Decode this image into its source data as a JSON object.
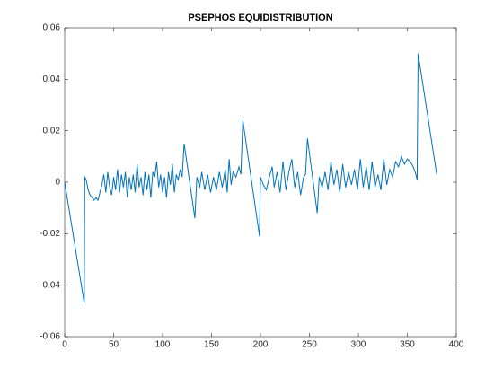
{
  "chart_data": {
    "type": "line",
    "title": "PSEPHOS EQUIDISTRIBUTION",
    "x": [
      0,
      20,
      20.5,
      22,
      24,
      26,
      28,
      30,
      32,
      34,
      36,
      38,
      40,
      42,
      44,
      46,
      48,
      50,
      52,
      54,
      56,
      58,
      60,
      62,
      64,
      66,
      68,
      70,
      72,
      74,
      76,
      78,
      80,
      82,
      84,
      86,
      88,
      90,
      92,
      94,
      96,
      98,
      100,
      102,
      104,
      106,
      108,
      110,
      112,
      114,
      116,
      118,
      120,
      122,
      133,
      135,
      138,
      140,
      143,
      146,
      149,
      152,
      155,
      158,
      161,
      164,
      166,
      168,
      170,
      172,
      175,
      178,
      180,
      182,
      199,
      200,
      203,
      206,
      209,
      212,
      214,
      217,
      220,
      223,
      226,
      229,
      232,
      235,
      238,
      241,
      244,
      246,
      248,
      258,
      260,
      263,
      266,
      269,
      272,
      275,
      278,
      281,
      284,
      287,
      290,
      293,
      296,
      299,
      302,
      305,
      308,
      311,
      314,
      317,
      320,
      323,
      326,
      329,
      332,
      335,
      338,
      341,
      344,
      347,
      350,
      353,
      356,
      358,
      360,
      361,
      380
    ],
    "series": [
      {
        "color": "#0072bd",
        "values": [
          0,
          -0.047,
          0.002,
          0.001,
          -0.003,
          -0.005,
          -0.006,
          -0.007,
          -0.006,
          -0.007,
          -0.004,
          -0.001,
          0.003,
          -0.004,
          0.004,
          -0.002,
          -0.005,
          0.002,
          -0.003,
          0.005,
          -0.004,
          0.003,
          -0.002,
          0.004,
          -0.006,
          0.002,
          -0.003,
          0.003,
          -0.004,
          0.007,
          -0.002,
          0.002,
          -0.005,
          0.004,
          -0.003,
          0.003,
          -0.006,
          0.004,
          0.002,
          0.008,
          -0.002,
          0.003,
          -0.004,
          0.002,
          -0.006,
          0.004,
          -0.001,
          0.007,
          -0.004,
          0.003,
          0.001,
          0.005,
          0.002,
          0.015,
          -0.014,
          0.002,
          -0.002,
          0.004,
          -0.003,
          0.003,
          -0.004,
          0.002,
          -0.003,
          0.004,
          -0.002,
          0.005,
          -0.004,
          0.009,
          -0.001,
          0.004,
          0.002,
          0.006,
          0.003,
          0.024,
          -0.021,
          0.002,
          -0.001,
          -0.003,
          0.002,
          0.006,
          -0.002,
          0.004,
          -0.004,
          0.008,
          -0.003,
          0.004,
          0.009,
          -0.002,
          0.004,
          -0.005,
          0.002,
          0.003,
          0.017,
          -0.012,
          0.002,
          -0.002,
          0.004,
          -0.003,
          0.008,
          -0.001,
          0.005,
          -0.004,
          0.007,
          -0.002,
          0.004,
          -0.001,
          0.005,
          -0.003,
          0.009,
          -0.002,
          0.006,
          -0.003,
          0.008,
          -0.002,
          0.003,
          -0.003,
          0.009,
          -0.001,
          0.005,
          0.002,
          0.008,
          0.006,
          0.01,
          0.007,
          0.009,
          0.008,
          0.006,
          0.004,
          0.001,
          0.05,
          0.003
        ]
      }
    ],
    "xlim": [
      0,
      400
    ],
    "xticks": [
      0,
      50,
      100,
      150,
      200,
      250,
      300,
      350,
      400
    ],
    "ylim": [
      -0.06,
      0.06
    ],
    "yticks": [
      -0.06,
      -0.04,
      -0.02,
      0,
      0.02,
      0.04,
      0.06
    ]
  }
}
